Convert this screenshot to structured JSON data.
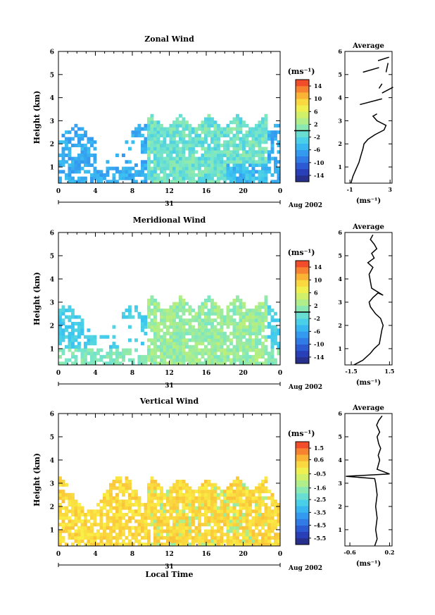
{
  "chart_data": [
    {
      "type": "heatmap",
      "title": "Zonal Wind",
      "ylabel": "Height (km)",
      "yticks": [
        "1",
        "2",
        "3",
        "4",
        "5",
        "6"
      ],
      "ylim": [
        0.3,
        6.0
      ],
      "xticks": [
        "0",
        "4",
        "8",
        "12",
        "16",
        "20",
        "0"
      ],
      "xlim": [
        0,
        24
      ],
      "date_label": "31",
      "month_label": "Aug 2002",
      "colorbar": {
        "unit": "(ms⁻¹)",
        "ticks": [
          "14",
          "10",
          "6",
          "2",
          "-2",
          "-6",
          "-10",
          "-14"
        ],
        "range": [
          -16,
          16
        ],
        "marker_line": 0
      },
      "profile": {
        "title": "Average",
        "xlabel": "(ms⁻¹)",
        "xticks": [
          "-1",
          "3"
        ],
        "xlim": [
          -1.5,
          3.2
        ],
        "points": [
          [
            -0.9,
            0.3
          ],
          [
            -0.7,
            0.6
          ],
          [
            -0.4,
            0.9
          ],
          [
            -0.1,
            1.2
          ],
          [
            0.1,
            1.5
          ],
          [
            0.3,
            1.8
          ],
          [
            0.4,
            2.0
          ],
          [
            0.8,
            2.2
          ],
          [
            1.5,
            2.4
          ],
          [
            2.4,
            2.6
          ],
          [
            2.6,
            2.8
          ],
          [
            1.7,
            3.0
          ],
          [
            1.3,
            3.2
          ],
          [
            1.7,
            3.3
          ]
        ],
        "upper_segments": [
          [
            [
              0.0,
              3.7
            ],
            [
              2.2,
              3.95
            ]
          ],
          [
            [
              2.2,
              4.2
            ],
            [
              3.3,
              4.45
            ]
          ],
          [
            [
              1.9,
              4.4
            ],
            [
              2.2,
              4.6
            ]
          ],
          [
            [
              0.3,
              5.1
            ],
            [
              1.9,
              5.3
            ]
          ],
          [
            [
              2.6,
              5.1
            ],
            [
              2.8,
              5.5
            ]
          ],
          [
            [
              1.8,
              5.6
            ],
            [
              2.9,
              5.75
            ]
          ]
        ]
      }
    },
    {
      "type": "heatmap",
      "title": "Meridional Wind",
      "ylabel": "Height (km)",
      "yticks": [
        "1",
        "2",
        "3",
        "4",
        "5",
        "6"
      ],
      "ylim": [
        0.3,
        6.0
      ],
      "xticks": [
        "0",
        "4",
        "8",
        "12",
        "16",
        "20",
        "0"
      ],
      "xlim": [
        0,
        24
      ],
      "date_label": "31",
      "month_label": "Aug 2002",
      "colorbar": {
        "unit": "(ms⁻¹)",
        "ticks": [
          "14",
          "10",
          "6",
          "2",
          "-2",
          "-6",
          "-10",
          "-14"
        ],
        "range": [
          -16,
          16
        ],
        "marker_line": 0
      },
      "profile": {
        "title": "Average",
        "xlabel": "(ms⁻¹)",
        "xticks": [
          "-1.5",
          "1.5"
        ],
        "xlim": [
          -2.0,
          1.7
        ],
        "points": [
          [
            -1.3,
            0.3
          ],
          [
            -0.6,
            0.5
          ],
          [
            0.0,
            0.8
          ],
          [
            0.3,
            1.0
          ],
          [
            0.7,
            1.2
          ],
          [
            0.8,
            1.5
          ],
          [
            0.9,
            1.8
          ],
          [
            1.0,
            2.0
          ],
          [
            0.8,
            2.3
          ],
          [
            0.4,
            2.5
          ],
          [
            0.0,
            2.8
          ],
          [
            -0.1,
            3.0
          ],
          [
            0.2,
            3.2
          ],
          [
            0.6,
            3.4
          ],
          [
            1.0,
            3.3
          ],
          [
            0.1,
            3.6
          ],
          [
            -0.1,
            4.2
          ],
          [
            0.2,
            4.5
          ],
          [
            -0.2,
            4.7
          ],
          [
            0.3,
            4.9
          ],
          [
            0.1,
            5.1
          ],
          [
            0.5,
            5.3
          ],
          [
            0.3,
            5.5
          ],
          [
            0.0,
            5.7
          ],
          [
            0.2,
            5.9
          ]
        ],
        "upper_segments": []
      }
    },
    {
      "type": "heatmap",
      "title": "Vertical Wind",
      "ylabel": "Height (km)",
      "xlabel": "Local Time",
      "yticks": [
        "1",
        "2",
        "3",
        "4",
        "5",
        "6"
      ],
      "ylim": [
        0.3,
        6.0
      ],
      "xticks": [
        "0",
        "4",
        "8",
        "12",
        "16",
        "20",
        "0"
      ],
      "xlim": [
        0,
        24
      ],
      "date_label": "31",
      "month_label": "Aug 2002",
      "colorbar": {
        "unit": "(ms⁻¹)",
        "ticks": [
          "1.5",
          "0.6",
          "-0.5",
          "-1.6",
          "-2.5",
          "-3.5",
          "-4.5",
          "-5.5"
        ],
        "range": [
          -6.0,
          2.0
        ],
        "marker_line": null
      },
      "profile": {
        "title": "Average",
        "xlabel": "(ms⁻¹)",
        "xticks": [
          "-0.6",
          "0.2"
        ],
        "xlim": [
          -0.7,
          0.25
        ],
        "points": [
          [
            -0.1,
            0.3
          ],
          [
            -0.05,
            0.6
          ],
          [
            -0.08,
            1.0
          ],
          [
            -0.05,
            1.5
          ],
          [
            -0.08,
            2.0
          ],
          [
            -0.05,
            2.5
          ],
          [
            -0.08,
            3.0
          ],
          [
            -0.1,
            3.2
          ],
          [
            -0.68,
            3.3
          ],
          [
            0.2,
            3.4
          ],
          [
            -0.05,
            3.6
          ],
          [
            0.0,
            4.0
          ],
          [
            -0.03,
            4.2
          ],
          [
            0.02,
            4.5
          ],
          [
            -0.02,
            4.7
          ],
          [
            -0.05,
            5.0
          ],
          [
            0.0,
            5.2
          ],
          [
            -0.06,
            5.5
          ],
          [
            -0.02,
            5.7
          ],
          [
            0.05,
            5.9
          ]
        ],
        "upper_segments": []
      }
    }
  ]
}
